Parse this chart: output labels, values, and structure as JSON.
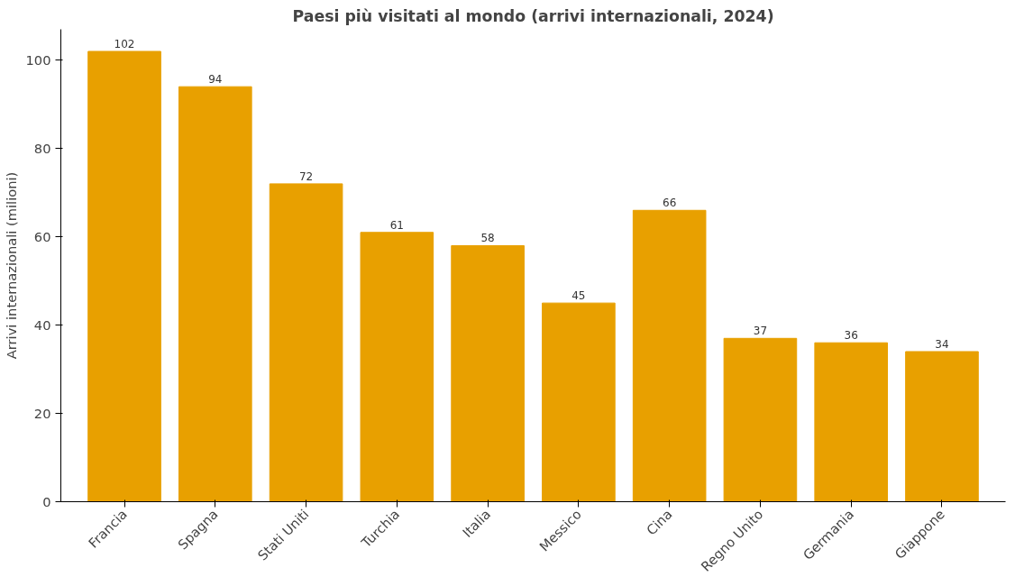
{
  "chart_data": {
    "type": "bar",
    "title": "Paesi più visitati al mondo (arrivi internazionali, 2024)",
    "ylabel": "Arrivi internazionali (milioni)",
    "categories": [
      "Francia",
      "Spagna",
      "Stati Uniti",
      "Turchia",
      "Italia",
      "Messico",
      "Cina",
      "Regno Unito",
      "Germania",
      "Giappone"
    ],
    "values": [
      102,
      94,
      72,
      61,
      58,
      45,
      66,
      37,
      36,
      34
    ],
    "color": "#e8a000",
    "ylim": [
      0,
      107
    ],
    "yticks": [
      0,
      20,
      40,
      60,
      80,
      100
    ],
    "data_labels": true,
    "grid": false
  }
}
